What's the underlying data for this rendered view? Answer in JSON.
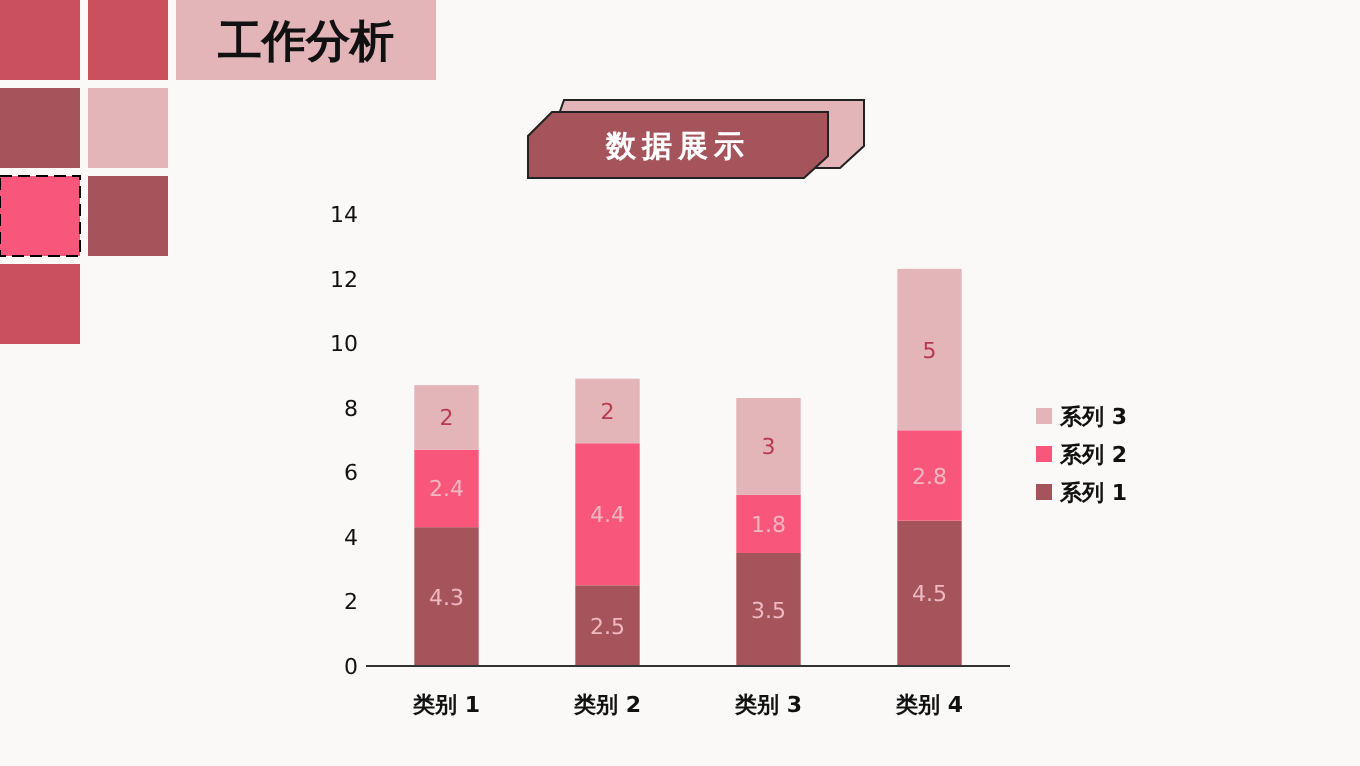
{
  "chart_data": {
    "type": "bar",
    "title": "工作分析",
    "subtitle": "数据展示",
    "categories": [
      "类别 1",
      "类别 2",
      "类别 3",
      "类别 4"
    ],
    "series": [
      {
        "name": "系列 1",
        "color": "#a5545c",
        "values": [
          4.3,
          2.5,
          3.5,
          4.5
        ]
      },
      {
        "name": "系列 2",
        "color": "#f8567a",
        "values": [
          2.4,
          4.4,
          1.8,
          2.8
        ]
      },
      {
        "name": "系列 3",
        "color": "#e3b4b8",
        "values": [
          2,
          2,
          3,
          5
        ]
      }
    ],
    "stacked": true,
    "data_labels": true,
    "ylim": [
      0,
      14
    ],
    "yticks": [
      0,
      2,
      4,
      6,
      8,
      10,
      12,
      14
    ],
    "grid": false,
    "legend": "right"
  }
}
